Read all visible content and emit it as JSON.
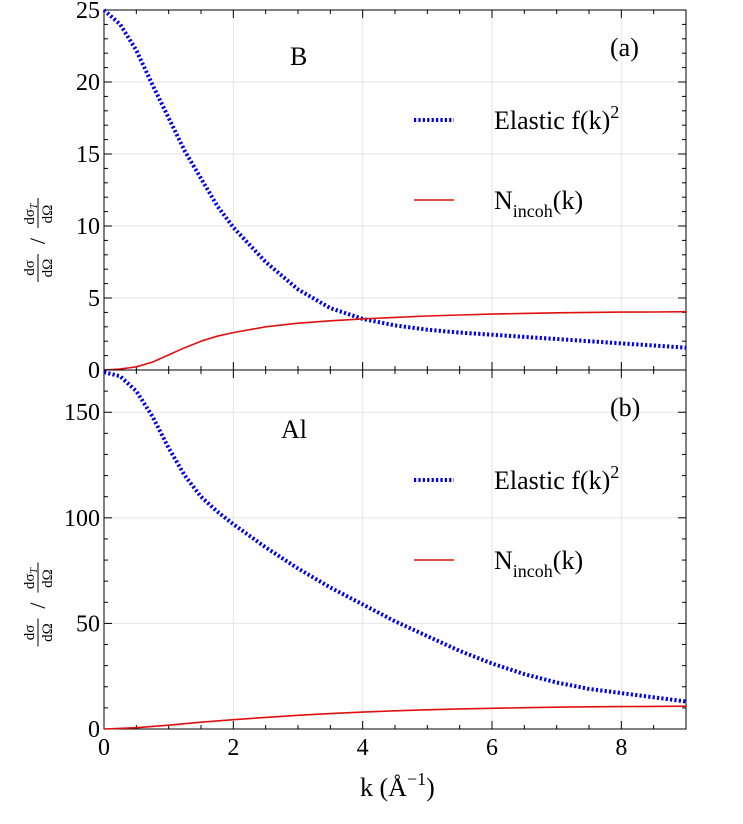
{
  "chart_data": [
    {
      "type": "line",
      "panel_label": "(a)",
      "element_label": "B",
      "ylabel": "dσ/dΩ / dσT/dΩ",
      "xlim": [
        0,
        9
      ],
      "ylim": [
        0,
        25
      ],
      "yticks": [
        0,
        5,
        10,
        15,
        20,
        25
      ],
      "grid": true,
      "legend_position": "top-right",
      "series": [
        {
          "name": "Elastic f(k)",
          "name_superscript": "2",
          "style": "dotted",
          "color": "#0000e6",
          "x": [
            0,
            0.25,
            0.5,
            0.75,
            1.0,
            1.25,
            1.5,
            1.75,
            2.0,
            2.5,
            3.0,
            3.5,
            4.0,
            4.5,
            5.0,
            5.5,
            6.0,
            6.5,
            7.0,
            7.5,
            8.0,
            8.5,
            9.0
          ],
          "y": [
            25.0,
            24.0,
            22.2,
            19.8,
            17.5,
            15.2,
            13.3,
            11.4,
            9.9,
            7.5,
            5.6,
            4.3,
            3.55,
            3.1,
            2.8,
            2.6,
            2.45,
            2.3,
            2.15,
            2.0,
            1.85,
            1.7,
            1.55
          ]
        },
        {
          "name": "N",
          "name_subscript": "incoh",
          "name_suffix": "(k)",
          "style": "solid",
          "color": "#e01010",
          "x": [
            0,
            0.25,
            0.5,
            0.75,
            1.0,
            1.25,
            1.5,
            1.75,
            2.0,
            2.5,
            3.0,
            3.5,
            4.0,
            4.5,
            5.0,
            5.5,
            6.0,
            6.5,
            7.0,
            7.5,
            8.0,
            8.5,
            9.0
          ],
          "y": [
            0,
            0.06,
            0.22,
            0.55,
            1.05,
            1.55,
            2.0,
            2.35,
            2.6,
            3.0,
            3.25,
            3.42,
            3.55,
            3.65,
            3.75,
            3.82,
            3.88,
            3.93,
            3.97,
            4.0,
            4.02,
            4.03,
            4.05
          ]
        }
      ]
    },
    {
      "type": "line",
      "panel_label": "(b)",
      "element_label": "Al",
      "ylabel": "dσ/dΩ / dσT/dΩ",
      "xlabel": "k (Å",
      "xlabel_superscript": "−1",
      "xlabel_suffix": ")",
      "xlim": [
        0,
        9
      ],
      "ylim": [
        0,
        170
      ],
      "xticks": [
        0,
        2,
        4,
        6,
        8
      ],
      "yticks": [
        0,
        50,
        100,
        150
      ],
      "grid": true,
      "legend_position": "top-right",
      "series": [
        {
          "name": "Elastic f(k)",
          "name_superscript": "2",
          "style": "dotted",
          "color": "#0000e6",
          "x": [
            0,
            0.25,
            0.5,
            0.75,
            1.0,
            1.25,
            1.5,
            1.75,
            2.0,
            2.5,
            3.0,
            3.5,
            4.0,
            4.5,
            5.0,
            5.5,
            6.0,
            6.5,
            7.0,
            7.5,
            8.0,
            8.5,
            9.0
          ],
          "y": [
            169,
            167,
            160,
            148,
            133,
            120,
            110,
            103,
            97,
            86,
            76,
            67,
            59,
            51,
            44,
            37,
            31,
            26,
            22,
            19,
            17,
            15,
            13
          ]
        },
        {
          "name": "N",
          "name_subscript": "incoh",
          "name_suffix": "(k)",
          "style": "solid",
          "color": "#e01010",
          "x": [
            0,
            0.5,
            1.0,
            1.5,
            2.0,
            2.5,
            3.0,
            3.5,
            4.0,
            4.5,
            5.0,
            5.5,
            6.0,
            6.5,
            7.0,
            7.5,
            8.0,
            8.5,
            9.0
          ],
          "y": [
            0,
            0.6,
            1.8,
            3.2,
            4.4,
            5.5,
            6.5,
            7.3,
            8.0,
            8.6,
            9.1,
            9.5,
            9.8,
            10.1,
            10.3,
            10.5,
            10.6,
            10.7,
            10.8
          ]
        }
      ]
    }
  ]
}
